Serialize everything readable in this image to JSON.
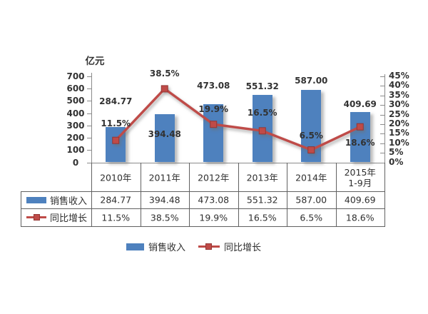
{
  "colors": {
    "bar_blue": "#4E81BE",
    "line_red": "#BF4B48",
    "marker_border": "#943634",
    "text": "#323232",
    "axis_line": "#8A8A8A",
    "table_border": "#616161",
    "background": "#FFFFFF"
  },
  "chart_data": {
    "type": "bar+line combo",
    "unit_label": "亿元",
    "categories": [
      "2010年",
      "2011年",
      "2012年",
      "2013年",
      "2014年",
      "2015年\n1-9月"
    ],
    "series": [
      {
        "name": "销售收入",
        "type": "bar",
        "axis": "left",
        "color": "#4E81BE",
        "values": [
          284.77,
          394.48,
          473.08,
          551.32,
          587.0,
          409.69
        ],
        "value_labels": [
          "284.77",
          "394.48",
          "473.08",
          "551.32",
          "587.00",
          "409.69"
        ]
      },
      {
        "name": "同比增长",
        "type": "line",
        "axis": "right",
        "color": "#BF4B48",
        "values": [
          11.5,
          38.5,
          19.9,
          16.5,
          6.5,
          18.6
        ],
        "value_labels": [
          "11.5%",
          "38.5%",
          "19.9%",
          "16.5%",
          "6.5%",
          "18.6%"
        ]
      }
    ],
    "left_axis": {
      "title": "亿元",
      "min": 0,
      "max": 700,
      "step": 100,
      "tick_labels": [
        "700",
        "600",
        "500",
        "400",
        "300",
        "200",
        "100",
        "0"
      ]
    },
    "right_axis": {
      "min": 0,
      "max": 45,
      "step": 5,
      "tick_labels": [
        "45%",
        "40%",
        "35%",
        "30%",
        "25%",
        "20%",
        "15%",
        "10%",
        "5%",
        "0%"
      ]
    },
    "legend_position": "bottom",
    "grid": "off"
  },
  "data_table": {
    "columns": [
      "2010年",
      "2011年",
      "2012年",
      "2013年",
      "2014年",
      "2015年\n1-9月"
    ],
    "rows": [
      {
        "label": "销售收入",
        "swatch": "bar-swatch",
        "values": [
          "284.77",
          "394.48",
          "473.08",
          "551.32",
          "587.00",
          "409.69"
        ]
      },
      {
        "label": "同比增长",
        "swatch": "line-marker-swatch",
        "values": [
          "11.5%",
          "38.5%",
          "19.9%",
          "16.5%",
          "6.5%",
          "18.6%"
        ]
      }
    ]
  },
  "legend": {
    "items": [
      {
        "label": "销售收入",
        "swatch": "bar-swatch"
      },
      {
        "label": "同比增长",
        "swatch": "line-marker-swatch"
      }
    ]
  }
}
